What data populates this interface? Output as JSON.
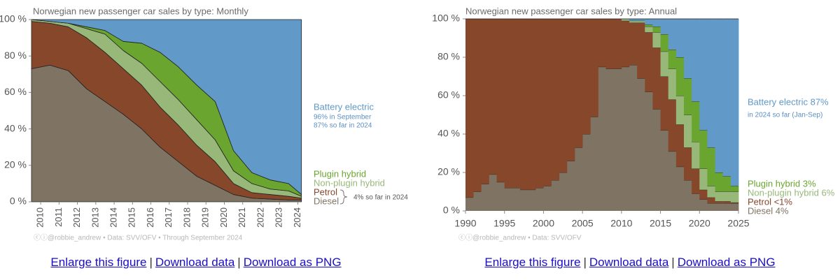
{
  "chart_data": [
    {
      "type": "area",
      "title": "Norwegian new passenger car sales by type: Monthly",
      "x": [
        2010,
        2011,
        2012,
        2013,
        2014,
        2015,
        2016,
        2017,
        2018,
        2019,
        2020,
        2021,
        2022,
        2023,
        2024,
        2024.7
      ],
      "xlim": [
        2010,
        2024.75
      ],
      "xticks": [
        {
          "value": 2010.5,
          "label": "2010"
        },
        {
          "value": 2011.5,
          "label": "2011"
        },
        {
          "value": 2012.5,
          "label": "2012"
        },
        {
          "value": 2013.5,
          "label": "2013"
        },
        {
          "value": 2014.5,
          "label": "2014"
        },
        {
          "value": 2015.5,
          "label": "2015"
        },
        {
          "value": 2016.5,
          "label": "2016"
        },
        {
          "value": 2017.5,
          "label": "2017"
        },
        {
          "value": 2018.5,
          "label": "2018"
        },
        {
          "value": 2019.5,
          "label": "2019"
        },
        {
          "value": 2020.5,
          "label": "2020"
        },
        {
          "value": 2021.5,
          "label": "2021"
        },
        {
          "value": 2022.5,
          "label": "2022"
        },
        {
          "value": 2023.5,
          "label": "2023"
        },
        {
          "value": 2024.5,
          "label": "2024"
        }
      ],
      "ylim": [
        0,
        100
      ],
      "yticks": [
        {
          "value": 0,
          "label": "0 %"
        },
        {
          "value": 20,
          "label": "20 %"
        },
        {
          "value": 40,
          "label": "40 %"
        },
        {
          "value": 60,
          "label": "60 %"
        },
        {
          "value": 80,
          "label": "80 %"
        },
        {
          "value": 100,
          "label": "100 %"
        }
      ],
      "stacked": true,
      "series": [
        {
          "name": "Diesel",
          "color": "#7f7463",
          "values": [
            73,
            75,
            72,
            62,
            55,
            48,
            40,
            30,
            22,
            14,
            9,
            4,
            2,
            1.5,
            1,
            1
          ]
        },
        {
          "name": "Petrol",
          "color": "#86472b",
          "values": [
            26,
            23,
            24,
            28,
            27,
            25,
            24,
            22,
            20,
            17,
            13,
            6,
            3,
            2.5,
            2,
            1
          ]
        },
        {
          "name": "Non-plugin hybrid",
          "color": "#98b87a",
          "values": [
            1,
            1,
            2,
            5,
            10,
            10,
            12,
            14,
            14,
            14,
            12,
            7,
            5,
            3,
            3,
            1
          ]
        },
        {
          "name": "Plugin hybrid",
          "color": "#6aa52f",
          "values": [
            0,
            0,
            0,
            1,
            2,
            5,
            11,
            16,
            18,
            19,
            21,
            11,
            6,
            5,
            4,
            1
          ]
        },
        {
          "name": "Battery electric",
          "color": "#6199c8",
          "values": [
            0,
            1,
            2,
            4,
            6,
            12,
            13,
            18,
            26,
            36,
            45,
            72,
            84,
            88,
            90,
            96
          ]
        }
      ],
      "annotations": [
        "96% in September",
        "87% so far in 2024",
        "4% so far in 2024"
      ],
      "source": "ⓒⓘ@robbie_andrew  •  Data: SVV/OFV  •  Through September 2024"
    },
    {
      "type": "step",
      "title": "Norwegian new passenger car sales by type: Annual",
      "x": [
        1990,
        1991,
        1992,
        1993,
        1994,
        1995,
        1996,
        1997,
        1998,
        1999,
        2000,
        2001,
        2002,
        2003,
        2004,
        2005,
        2006,
        2007,
        2008,
        2009,
        2010,
        2011,
        2012,
        2013,
        2014,
        2015,
        2016,
        2017,
        2018,
        2019,
        2020,
        2021,
        2022,
        2023,
        2024
      ],
      "xlim": [
        1990,
        2025
      ],
      "xticks": [
        1990,
        1995,
        2000,
        2005,
        2010,
        2015,
        2020,
        2025
      ],
      "ylim": [
        0,
        100
      ],
      "yticks": [
        {
          "value": 0,
          "label": "0 %"
        },
        {
          "value": 20,
          "label": "20 %"
        },
        {
          "value": 40,
          "label": "40 %"
        },
        {
          "value": 60,
          "label": "60 %"
        },
        {
          "value": 80,
          "label": "80 %"
        },
        {
          "value": 100,
          "label": "100 %"
        }
      ],
      "stacked": true,
      "series": [
        {
          "name": "Diesel 4%",
          "color": "#7f7463",
          "values": [
            7,
            10,
            14,
            19,
            15,
            12,
            12,
            11,
            11,
            12,
            13,
            16,
            20,
            26,
            33,
            40,
            49,
            75,
            74,
            74,
            75,
            76,
            69,
            62,
            53,
            42,
            31,
            23,
            16,
            9,
            6,
            4,
            4,
            4,
            4
          ]
        },
        {
          "name": "Petrol <1%",
          "color": "#86472b",
          "values": [
            93,
            90,
            86,
            81,
            85,
            88,
            88,
            89,
            89,
            88,
            87,
            84,
            80,
            74,
            67,
            60,
            51,
            25,
            26,
            26,
            24,
            22,
            29,
            31,
            32,
            28,
            27,
            22,
            17,
            13,
            5,
            3,
            1,
            1,
            0.4
          ]
        },
        {
          "name": "Non-plugin hybrid 6%",
          "color": "#98b87a",
          "values": [
            0,
            0,
            0,
            0,
            0,
            0,
            0,
            0,
            0,
            0,
            0,
            0,
            0,
            0,
            0,
            0,
            0,
            0,
            0,
            0,
            1,
            1,
            1,
            3,
            8,
            13,
            16,
            15,
            17,
            14,
            11,
            6,
            5,
            5,
            5.6
          ]
        },
        {
          "name": "Plugin hybrid 3%",
          "color": "#6aa52f",
          "values": [
            0,
            0,
            0,
            0,
            0,
            0,
            0,
            0,
            0,
            0,
            0,
            0,
            0,
            0,
            0,
            0,
            0,
            0,
            0,
            0,
            0,
            0,
            0,
            1,
            3,
            9,
            10,
            20,
            19,
            21,
            20,
            20,
            10,
            8,
            3
          ]
        },
        {
          "name": "Battery electric 87%",
          "color": "#6199c8",
          "values": [
            0,
            0,
            0,
            0,
            0,
            0,
            0,
            0,
            0,
            0,
            0,
            0,
            0,
            0,
            0,
            0,
            0,
            0,
            0,
            0,
            0,
            1,
            1,
            3,
            4,
            8,
            16,
            20,
            31,
            43,
            58,
            67,
            80,
            82,
            87
          ]
        }
      ],
      "annotations": [
        "in 2024 so far (Jan-Sep)"
      ],
      "source": "ⓒⓘ@robbie_andrew  •  Data: SVV/OFV"
    }
  ],
  "links": [
    {
      "items": [
        "Enlarge this figure",
        "Download data",
        "Download as PNG"
      ],
      "separator": "|"
    },
    {
      "items": [
        "Enlarge this figure",
        "Download data",
        "Download as PNG"
      ],
      "separator": "|"
    }
  ]
}
